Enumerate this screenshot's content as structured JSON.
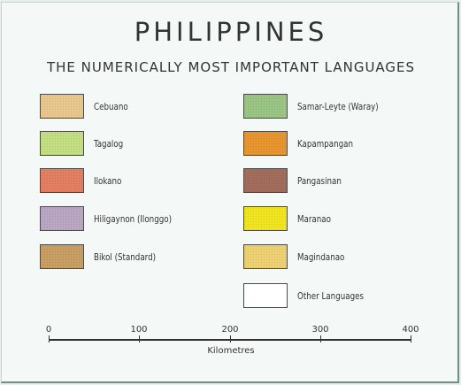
{
  "title": "PHILIPPINES",
  "subtitle": "THE NUMERICALLY MOST IMPORTANT LANGUAGES",
  "legend": {
    "left": [
      {
        "label": "Cebuano",
        "color": "#e8c78c"
      },
      {
        "label": "Tagalog",
        "color": "#c3df82"
      },
      {
        "label": "Ilokano",
        "color": "#e27e62"
      },
      {
        "label": "Hiligaynon (Ilonggo)",
        "color": "#b9a6c3"
      },
      {
        "label": "Bikol (Standard)",
        "color": "#c79e63"
      }
    ],
    "right": [
      {
        "label": "Samar-Leyte (Waray)",
        "color": "#9bc485"
      },
      {
        "label": "Kapampangan",
        "color": "#e7962f"
      },
      {
        "label": "Pangasinan",
        "color": "#a26c5c"
      },
      {
        "label": "Maranao",
        "color": "#f1e521"
      },
      {
        "label": "Magindanao",
        "color": "#ecd071"
      },
      {
        "label": "Other Languages",
        "color": "#ffffff"
      }
    ]
  },
  "scale": {
    "ticks": [
      "0",
      "100",
      "200",
      "300",
      "400"
    ],
    "unit": "Kilometres"
  }
}
